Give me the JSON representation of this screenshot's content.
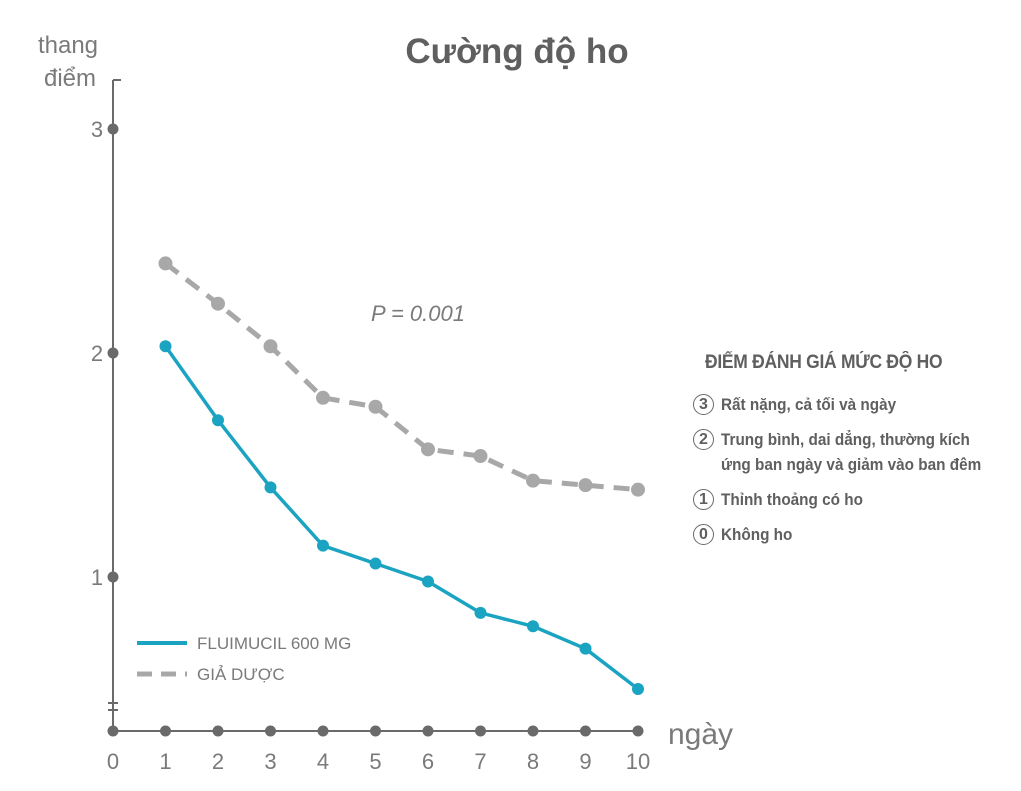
{
  "chart_data": {
    "type": "line",
    "title": "Cường độ ho",
    "ylabel": [
      "thang",
      "điểm"
    ],
    "xlabel": "ngày",
    "annotation": "P = 0.001",
    "x_ticks": [
      0,
      1,
      2,
      3,
      4,
      5,
      6,
      7,
      8,
      9,
      10
    ],
    "y_ticks": [
      1,
      2,
      3
    ],
    "ylim": [
      0.35,
      3.2
    ],
    "xlim": [
      0,
      10
    ],
    "series": [
      {
        "name": "FLUIMUCIL 600 MG",
        "color": "#1ba3c2",
        "style": "solid",
        "x": [
          1,
          2,
          3,
          4,
          5,
          6,
          7,
          8,
          9,
          10
        ],
        "values": [
          2.03,
          1.7,
          1.4,
          1.14,
          1.06,
          0.98,
          0.84,
          0.78,
          0.68,
          0.5
        ]
      },
      {
        "name": "GIẢ DƯỢC",
        "color": "#a8a8a8",
        "style": "dashed",
        "x": [
          1,
          2,
          3,
          4,
          5,
          6,
          7,
          8,
          9,
          10
        ],
        "values": [
          2.4,
          2.22,
          2.03,
          1.8,
          1.76,
          1.57,
          1.54,
          1.43,
          1.41,
          1.39
        ]
      }
    ],
    "legend_position": "bottom-left"
  },
  "scale_legend": {
    "title": "ĐIỂM ĐÁNH GIÁ MỨC ĐỘ HO",
    "items": [
      {
        "num": "3",
        "text": [
          "Rất nặng, cả tối và ngày"
        ]
      },
      {
        "num": "2",
        "text": [
          "Trung bình, dai dẳng, thường kích",
          "ứng ban ngày và giảm vào ban đêm"
        ]
      },
      {
        "num": "1",
        "text": [
          "Thỉnh thoảng có ho"
        ]
      },
      {
        "num": "0",
        "text": [
          "Không ho"
        ]
      }
    ]
  }
}
